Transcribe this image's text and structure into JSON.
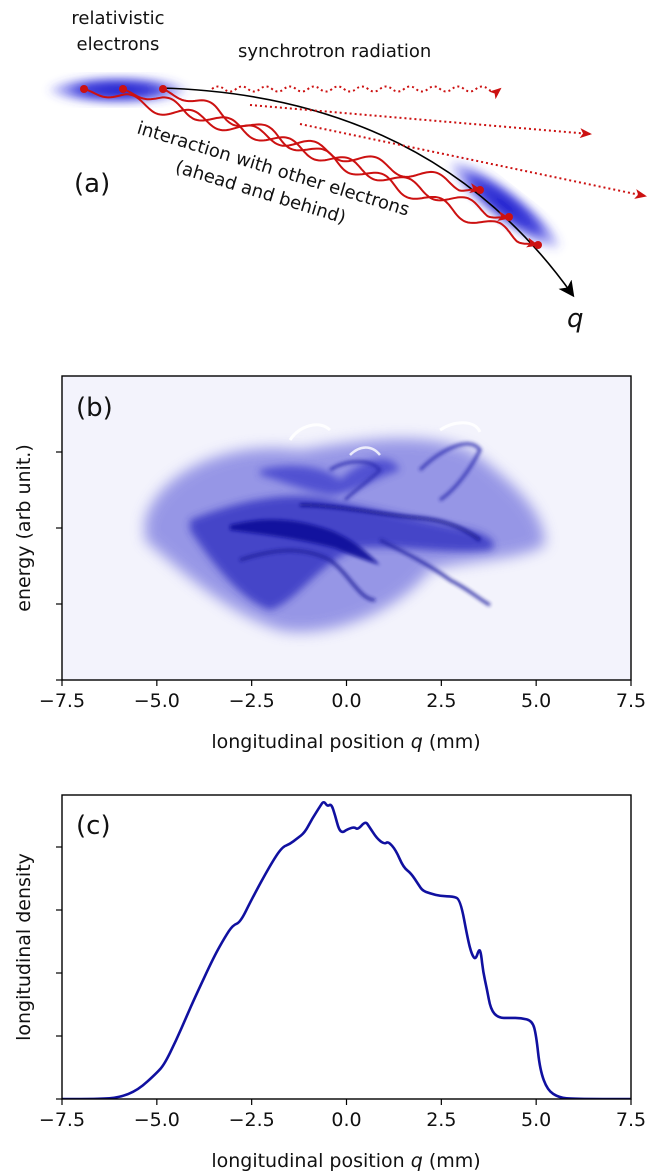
{
  "panel_a": {
    "label": "(a)",
    "electrons_label_line1": "relativistic",
    "electrons_label_line2": "electrons",
    "radiation_label": "synchrotron radiation",
    "interaction_line1": "interaction with other electrons",
    "interaction_line2": "(ahead and behind)",
    "axis_label": "q",
    "colors": {
      "bunch": "#1a1acc",
      "radiation": "#cc1111",
      "trajectory": "#000000"
    }
  },
  "panel_b": {
    "label": "(b)",
    "xlabel": "longitudinal position q (mm)",
    "ylabel": "energy (arb unit.)",
    "xticks": [
      "−7.5",
      "−5.0",
      "−2.5",
      "0.0",
      "2.5",
      "5.0",
      "7.5"
    ],
    "xlim": [
      -7.5,
      7.5
    ],
    "colormap_color": "#1010a0"
  },
  "chart_data": [
    {
      "type": "line",
      "label": "(c)",
      "xlabel": "longitudinal position q (mm)",
      "ylabel": "longitudinal density",
      "xlim": [
        -7.5,
        7.5
      ],
      "ylim": [
        0,
        1.05
      ],
      "xticks": [
        "−7.5",
        "−5.0",
        "−2.5",
        "0.0",
        "2.5",
        "5.0",
        "7.5"
      ],
      "color": "#1010a0",
      "x": [
        -7.5,
        -6.5,
        -6.0,
        -5.5,
        -5.0,
        -4.8,
        -4.5,
        -4.2,
        -4.0,
        -3.5,
        -3.2,
        -3.0,
        -2.8,
        -2.5,
        -2.0,
        -1.7,
        -1.5,
        -1.3,
        -1.1,
        -0.9,
        -0.7,
        -0.6,
        -0.5,
        -0.4,
        -0.3,
        -0.2,
        -0.1,
        0.0,
        0.2,
        0.3,
        0.5,
        0.6,
        0.8,
        1.0,
        1.1,
        1.3,
        1.5,
        1.7,
        1.9,
        2.0,
        2.2,
        2.5,
        2.8,
        3.0,
        3.2,
        3.3,
        3.4,
        3.5,
        3.55,
        3.6,
        3.7,
        3.8,
        4.0,
        4.3,
        4.6,
        4.9,
        5.0,
        5.1,
        5.3,
        5.6,
        6.0,
        7.5
      ],
      "y": [
        0.0,
        0.0,
        0.005,
        0.03,
        0.09,
        0.12,
        0.2,
        0.29,
        0.35,
        0.49,
        0.56,
        0.6,
        0.61,
        0.69,
        0.81,
        0.87,
        0.88,
        0.9,
        0.92,
        0.97,
        1.01,
        1.03,
        1.01,
        1.02,
        0.98,
        0.93,
        0.92,
        0.93,
        0.94,
        0.93,
        0.96,
        0.94,
        0.9,
        0.88,
        0.89,
        0.86,
        0.8,
        0.78,
        0.74,
        0.72,
        0.71,
        0.7,
        0.7,
        0.69,
        0.55,
        0.5,
        0.48,
        0.52,
        0.5,
        0.44,
        0.38,
        0.31,
        0.28,
        0.28,
        0.28,
        0.27,
        0.22,
        0.1,
        0.03,
        0.005,
        0.0,
        0.0
      ]
    }
  ]
}
